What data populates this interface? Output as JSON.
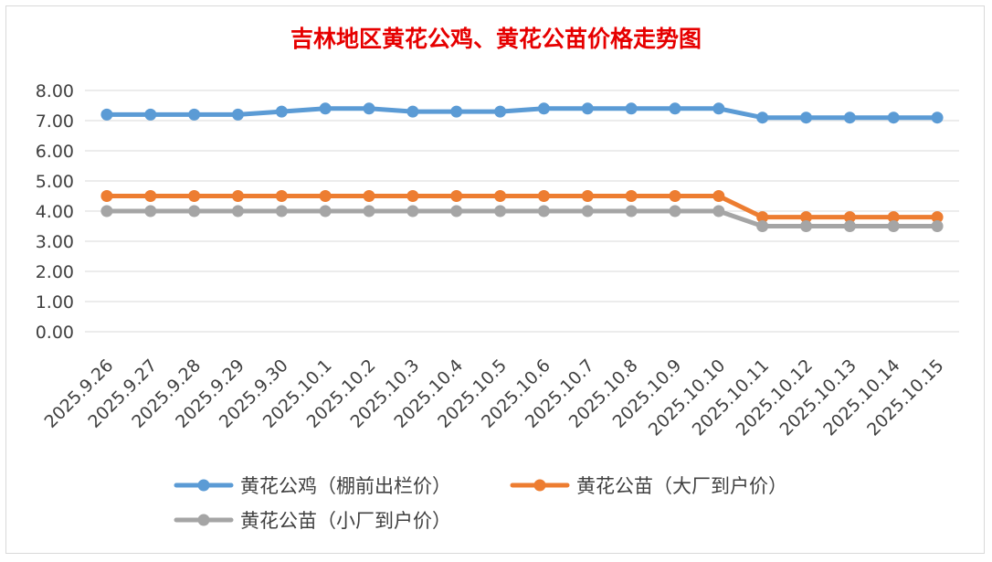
{
  "chart_data": {
    "type": "line",
    "title": "吉林地区黄花公鸡、黄花公苗价格走势图",
    "xlabel": "",
    "ylabel": "",
    "ylim": [
      0,
      8
    ],
    "ytick_labels": [
      "0.00",
      "1.00",
      "2.00",
      "3.00",
      "4.00",
      "5.00",
      "6.00",
      "7.00",
      "8.00"
    ],
    "grid": true,
    "legend_position": "bottom",
    "categories": [
      "2025.9.26",
      "2025.9.27",
      "2025.9.28",
      "2025.9.29",
      "2025.9.30",
      "2025.10.1",
      "2025.10.2",
      "2025.10.3",
      "2025.10.4",
      "2025.10.5",
      "2025.10.6",
      "2025.10.7",
      "2025.10.8",
      "2025.10.9",
      "2025.10.10",
      "2025.10.11",
      "2025.10.12",
      "2025.10.13",
      "2025.10.14",
      "2025.10.15"
    ],
    "series": [
      {
        "name": "黄花公鸡（棚前出栏价）",
        "color": "#5b9bd5",
        "values": [
          7.2,
          7.2,
          7.2,
          7.2,
          7.3,
          7.4,
          7.4,
          7.3,
          7.3,
          7.3,
          7.4,
          7.4,
          7.4,
          7.4,
          7.4,
          7.1,
          7.1,
          7.1,
          7.1,
          7.1
        ]
      },
      {
        "name": "黄花公苗（大厂到户价）",
        "color": "#ed7d31",
        "values": [
          4.5,
          4.5,
          4.5,
          4.5,
          4.5,
          4.5,
          4.5,
          4.5,
          4.5,
          4.5,
          4.5,
          4.5,
          4.5,
          4.5,
          4.5,
          3.8,
          3.8,
          3.8,
          3.8,
          3.8
        ]
      },
      {
        "name": "黄花公苗（小厂到户价）",
        "color": "#a5a5a5",
        "values": [
          4.0,
          4.0,
          4.0,
          4.0,
          4.0,
          4.0,
          4.0,
          4.0,
          4.0,
          4.0,
          4.0,
          4.0,
          4.0,
          4.0,
          4.0,
          3.5,
          3.5,
          3.5,
          3.5,
          3.5
        ]
      }
    ]
  }
}
